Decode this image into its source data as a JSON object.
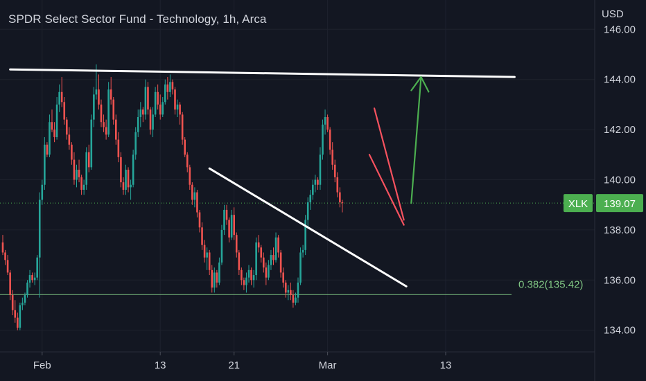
{
  "header": {
    "title": "SPDR Select Sector Fund - Technology, 1h, Arca",
    "currency": "USD"
  },
  "chart_data": {
    "type": "candlestick",
    "symbol": "XLK",
    "last_price": 139.07,
    "last_price_label": "139.07",
    "ylim": [
      133.2,
      146.5
    ],
    "y_ticks": [
      {
        "value": 146,
        "label": "146.00"
      },
      {
        "value": 144,
        "label": "144.00"
      },
      {
        "value": 142,
        "label": "142.00"
      },
      {
        "value": 140,
        "label": "140.00"
      },
      {
        "value": 138,
        "label": "138.00"
      },
      {
        "value": 136,
        "label": "136.00"
      },
      {
        "value": 134,
        "label": "134.00"
      }
    ],
    "x_ticks": [
      {
        "bar": 16,
        "label": "Feb"
      },
      {
        "bar": 64,
        "label": "13"
      },
      {
        "bar": 94,
        "label": "21"
      },
      {
        "bar": 132,
        "label": "Mar"
      },
      {
        "bar": 180,
        "label": "13"
      }
    ],
    "fib_level": {
      "value": 135.42,
      "label": "0.382(135.42)"
    },
    "trendlines": [
      {
        "name": "resistance",
        "from": {
          "bar": 3,
          "price": 144.4
        },
        "to": {
          "bar": 208,
          "price": 144.1
        }
      },
      {
        "name": "descending-trendline",
        "from": {
          "bar": 84,
          "price": 140.45
        },
        "to": {
          "bar": 164,
          "price": 135.75
        }
      }
    ],
    "channel": [
      {
        "from": {
          "bar": 151,
          "price": 142.85
        },
        "to": {
          "bar": 163,
          "price": 138.4
        }
      },
      {
        "from": {
          "bar": 149,
          "price": 141.0
        },
        "to": {
          "bar": 163,
          "price": 138.2
        }
      }
    ],
    "projection_arrow": {
      "from": {
        "bar": 166,
        "price": 139.07
      },
      "to": {
        "bar": 170,
        "price": 144.1
      }
    },
    "colors": {
      "background": "#131722",
      "up": "#26a69a",
      "down": "#ef5350",
      "trendline": "#ffffff",
      "channel": "#f7525f",
      "arrow": "#4caf50",
      "fib": "#81c784",
      "price_label": "#4caf50"
    },
    "bars": [
      [
        137.5,
        137.8,
        137.0,
        137.1
      ],
      [
        137.1,
        137.2,
        136.6,
        136.8
      ],
      [
        136.8,
        137.0,
        136.2,
        136.3
      ],
      [
        136.3,
        136.4,
        135.2,
        135.4
      ],
      [
        135.4,
        135.6,
        134.6,
        134.8
      ],
      [
        134.8,
        135.2,
        134.3,
        134.5
      ],
      [
        134.5,
        134.7,
        134.0,
        134.1
      ],
      [
        134.1,
        135.1,
        134.0,
        135.0
      ],
      [
        135.0,
        135.3,
        134.8,
        135.1
      ],
      [
        135.1,
        135.5,
        135.0,
        135.4
      ],
      [
        135.4,
        136.0,
        135.3,
        135.9
      ],
      [
        135.9,
        136.4,
        135.7,
        136.2
      ],
      [
        136.2,
        136.3,
        135.9,
        136.0
      ],
      [
        136.0,
        136.3,
        135.8,
        136.1
      ],
      [
        136.1,
        137.0,
        136.0,
        136.9
      ],
      [
        136.9,
        139.5,
        135.3,
        139.2
      ],
      [
        139.2,
        140.0,
        139.0,
        139.8
      ],
      [
        139.8,
        141.7,
        139.6,
        141.4
      ],
      [
        141.4,
        141.5,
        140.9,
        141.0
      ],
      [
        141.0,
        142.6,
        140.9,
        142.3
      ],
      [
        142.3,
        142.8,
        141.9,
        142.0
      ],
      [
        142.0,
        142.3,
        141.5,
        141.7
      ],
      [
        141.7,
        143.3,
        141.6,
        143.0
      ],
      [
        143.0,
        143.8,
        142.7,
        143.5
      ],
      [
        143.5,
        144.1,
        142.9,
        143.1
      ],
      [
        143.1,
        143.3,
        142.2,
        142.4
      ],
      [
        142.4,
        142.5,
        141.6,
        141.8
      ],
      [
        141.8,
        142.1,
        141.2,
        141.4
      ],
      [
        141.4,
        141.5,
        140.6,
        140.8
      ],
      [
        140.8,
        141.1,
        139.8,
        140.0
      ],
      [
        140.0,
        140.6,
        139.7,
        140.4
      ],
      [
        140.4,
        140.8,
        139.9,
        140.1
      ],
      [
        140.1,
        140.2,
        139.4,
        139.6
      ],
      [
        139.6,
        140.0,
        139.4,
        139.8
      ],
      [
        139.8,
        141.3,
        139.6,
        141.1
      ],
      [
        141.1,
        141.4,
        140.3,
        140.5
      ],
      [
        140.5,
        142.6,
        140.4,
        142.4
      ],
      [
        142.4,
        143.7,
        142.1,
        143.4
      ],
      [
        143.4,
        144.6,
        143.2,
        143.6
      ],
      [
        143.6,
        144.2,
        142.8,
        143.0
      ],
      [
        143.0,
        143.2,
        142.1,
        142.3
      ],
      [
        142.3,
        142.6,
        141.9,
        142.1
      ],
      [
        142.1,
        142.4,
        141.6,
        141.8
      ],
      [
        141.8,
        143.9,
        141.7,
        143.6
      ],
      [
        143.6,
        144.1,
        143.0,
        143.2
      ],
      [
        143.2,
        143.3,
        142.2,
        142.4
      ],
      [
        142.4,
        142.6,
        141.4,
        141.6
      ],
      [
        141.6,
        141.9,
        140.7,
        140.9
      ],
      [
        140.9,
        141.1,
        139.7,
        139.9
      ],
      [
        139.9,
        140.1,
        139.4,
        139.6
      ],
      [
        139.6,
        140.6,
        139.4,
        140.4
      ],
      [
        140.4,
        140.5,
        139.5,
        139.7
      ],
      [
        139.7,
        140.0,
        139.2,
        139.8
      ],
      [
        139.8,
        141.2,
        139.7,
        141.0
      ],
      [
        141.0,
        142.1,
        140.8,
        141.9
      ],
      [
        141.9,
        142.8,
        141.7,
        142.5
      ],
      [
        142.5,
        143.1,
        142.1,
        142.8
      ],
      [
        142.8,
        142.9,
        142.3,
        142.6
      ],
      [
        142.6,
        144.0,
        142.4,
        143.7
      ],
      [
        143.7,
        143.9,
        142.6,
        142.8
      ],
      [
        142.8,
        142.9,
        141.8,
        142.0
      ],
      [
        142.0,
        142.9,
        141.7,
        142.6
      ],
      [
        142.6,
        143.7,
        142.5,
        143.5
      ],
      [
        143.5,
        143.8,
        142.8,
        143.0
      ],
      [
        143.0,
        143.4,
        142.4,
        142.6
      ],
      [
        142.6,
        143.3,
        142.5,
        143.1
      ],
      [
        143.1,
        144.0,
        143.0,
        143.8
      ],
      [
        143.8,
        144.1,
        143.2,
        143.5
      ],
      [
        143.5,
        144.2,
        143.3,
        143.9
      ],
      [
        143.9,
        144.0,
        143.4,
        143.6
      ],
      [
        143.6,
        143.7,
        142.6,
        142.8
      ],
      [
        142.8,
        143.2,
        142.5,
        143.0
      ],
      [
        143.0,
        143.1,
        142.2,
        142.6
      ],
      [
        142.6,
        142.7,
        141.4,
        141.6
      ],
      [
        141.6,
        141.7,
        140.9,
        141.0
      ],
      [
        141.0,
        141.1,
        140.3,
        140.5
      ],
      [
        140.5,
        140.6,
        139.6,
        139.8
      ],
      [
        139.8,
        139.9,
        139.0,
        139.2
      ],
      [
        139.2,
        139.7,
        138.9,
        139.5
      ],
      [
        139.5,
        139.6,
        138.5,
        138.7
      ],
      [
        138.7,
        138.8,
        137.9,
        138.1
      ],
      [
        138.1,
        138.3,
        137.2,
        137.4
      ],
      [
        137.4,
        137.6,
        136.7,
        136.9
      ],
      [
        136.9,
        137.3,
        136.4,
        137.1
      ],
      [
        137.1,
        137.2,
        136.2,
        136.4
      ],
      [
        136.4,
        136.6,
        135.5,
        135.7
      ],
      [
        135.7,
        136.5,
        135.5,
        136.3
      ],
      [
        136.3,
        136.4,
        135.7,
        135.9
      ],
      [
        135.9,
        136.9,
        135.8,
        136.7
      ],
      [
        136.7,
        138.2,
        136.6,
        138.0
      ],
      [
        138.0,
        139.0,
        137.8,
        138.8
      ],
      [
        138.8,
        139.0,
        138.2,
        138.4
      ],
      [
        138.4,
        138.5,
        137.5,
        137.7
      ],
      [
        137.7,
        138.8,
        137.6,
        138.6
      ],
      [
        138.6,
        138.9,
        137.6,
        137.8
      ],
      [
        137.8,
        137.9,
        136.9,
        137.1
      ],
      [
        137.1,
        137.2,
        136.2,
        136.4
      ],
      [
        136.4,
        136.5,
        135.8,
        136.0
      ],
      [
        136.0,
        136.1,
        135.6,
        135.8
      ],
      [
        135.8,
        136.3,
        135.5,
        136.1
      ],
      [
        136.1,
        136.6,
        135.9,
        136.4
      ],
      [
        136.4,
        136.5,
        135.8,
        136.0
      ],
      [
        136.0,
        136.4,
        135.7,
        136.2
      ],
      [
        136.2,
        137.7,
        136.0,
        137.5
      ],
      [
        137.5,
        137.8,
        137.1,
        137.3
      ],
      [
        137.3,
        137.4,
        136.7,
        136.9
      ],
      [
        136.9,
        137.1,
        136.3,
        136.5
      ],
      [
        136.5,
        136.7,
        135.8,
        136.1
      ],
      [
        136.1,
        136.8,
        136.0,
        136.6
      ],
      [
        136.6,
        137.2,
        136.4,
        137.0
      ],
      [
        137.0,
        137.3,
        136.6,
        136.8
      ],
      [
        136.8,
        137.9,
        136.7,
        137.7
      ],
      [
        137.7,
        137.8,
        136.9,
        137.1
      ],
      [
        137.1,
        137.2,
        136.1,
        136.3
      ],
      [
        136.3,
        136.5,
        135.7,
        135.9
      ],
      [
        135.9,
        136.0,
        135.3,
        135.5
      ],
      [
        135.5,
        135.8,
        135.2,
        135.6
      ],
      [
        135.6,
        135.9,
        135.2,
        135.4
      ],
      [
        135.4,
        135.6,
        134.9,
        135.1
      ],
      [
        135.1,
        135.5,
        135.0,
        135.3
      ],
      [
        135.3,
        136.1,
        135.1,
        135.9
      ],
      [
        135.9,
        137.3,
        135.8,
        137.1
      ],
      [
        137.1,
        137.4,
        136.9,
        137.2
      ],
      [
        137.2,
        138.6,
        137.0,
        138.4
      ],
      [
        138.4,
        139.3,
        138.1,
        139.1
      ],
      [
        139.1,
        139.6,
        138.8,
        139.4
      ],
      [
        139.4,
        140.0,
        139.2,
        139.8
      ],
      [
        139.8,
        140.2,
        139.5,
        140.0
      ],
      [
        140.0,
        140.1,
        139.6,
        139.8
      ],
      [
        139.8,
        141.3,
        139.6,
        141.0
      ],
      [
        141.0,
        142.4,
        140.8,
        142.2
      ],
      [
        142.2,
        142.8,
        141.8,
        142.5
      ],
      [
        142.5,
        142.6,
        141.9,
        142.0
      ],
      [
        142.0,
        142.1,
        141.0,
        141.2
      ],
      [
        141.2,
        141.5,
        140.4,
        140.6
      ],
      [
        140.6,
        140.8,
        139.9,
        140.1
      ],
      [
        140.1,
        140.3,
        139.3,
        139.5
      ],
      [
        139.5,
        139.7,
        138.9,
        139.1
      ],
      [
        139.1,
        139.2,
        138.7,
        139.07
      ]
    ]
  }
}
